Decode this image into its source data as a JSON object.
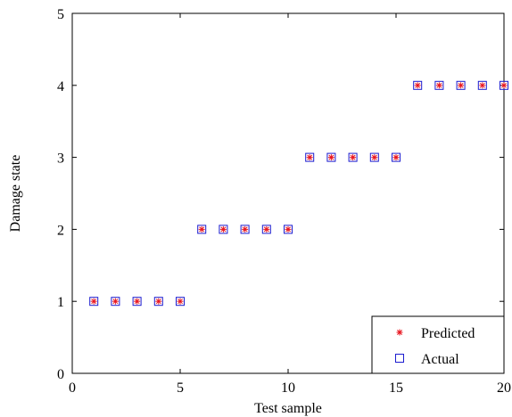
{
  "chart_data": {
    "type": "scatter",
    "title": "",
    "xlabel": "Test sample",
    "ylabel": "Damage state",
    "xlim": [
      0,
      20
    ],
    "ylim": [
      0,
      5
    ],
    "xticks": [
      0,
      5,
      10,
      15,
      20
    ],
    "yticks": [
      0,
      1,
      2,
      3,
      4,
      5
    ],
    "grid": false,
    "legend_position": "bottom-right",
    "x": [
      1,
      2,
      3,
      4,
      5,
      6,
      7,
      8,
      9,
      10,
      11,
      12,
      13,
      14,
      15,
      16,
      17,
      18,
      19,
      20
    ],
    "series": [
      {
        "name": "Predicted",
        "marker": "asterisk",
        "color": "#e8141e",
        "values": [
          1,
          1,
          1,
          1,
          1,
          2,
          2,
          2,
          2,
          2,
          3,
          3,
          3,
          3,
          3,
          4,
          4,
          4,
          4,
          4
        ]
      },
      {
        "name": "Actual",
        "marker": "square",
        "color": "#1c1ccf",
        "values": [
          1,
          1,
          1,
          1,
          1,
          2,
          2,
          2,
          2,
          2,
          3,
          3,
          3,
          3,
          3,
          4,
          4,
          4,
          4,
          4
        ]
      }
    ]
  }
}
